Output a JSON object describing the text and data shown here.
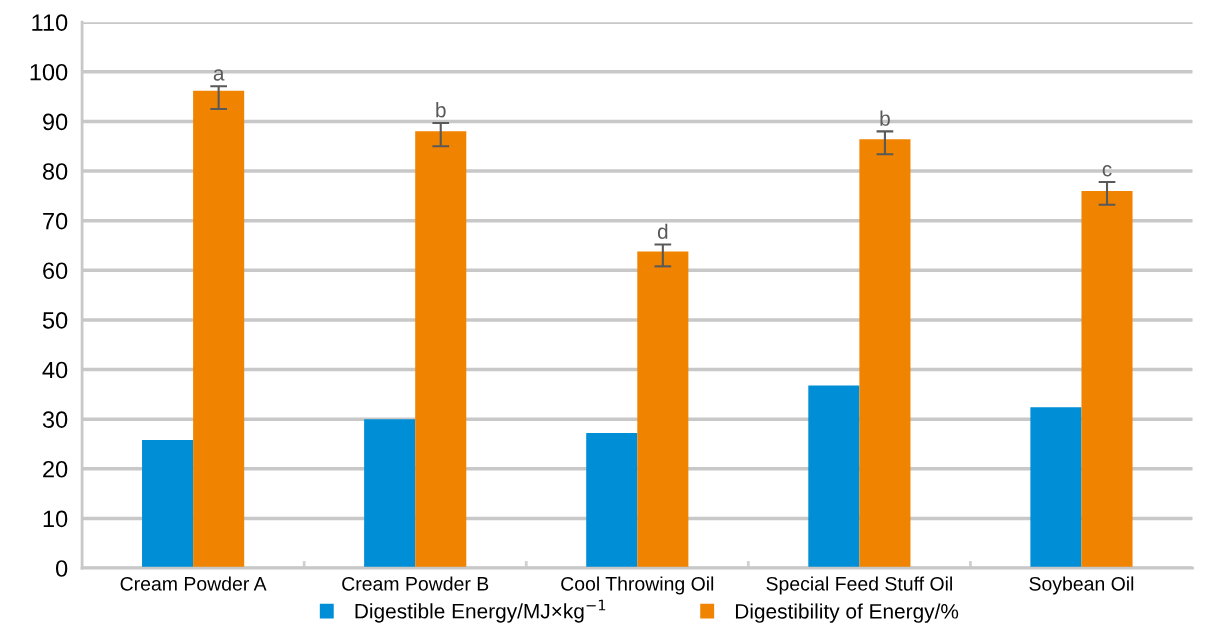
{
  "chart_data": {
    "type": "bar",
    "categories": [
      "Cream Powder A",
      "Cream Powder B",
      "Cool Throwing Oil",
      "Special Feed Stuff Oil",
      "Soybean Oil"
    ],
    "series": [
      {
        "name": "Digestible Energy/MJ×kg$^{−1}$",
        "color": "#008ed6",
        "values": [
          25.8,
          30.0,
          27.2,
          36.8,
          32.4
        ]
      },
      {
        "name": "Digestibility of Energy/%",
        "color": "#f08300",
        "values": [
          96.2,
          88.0,
          63.8,
          86.4,
          76.0
        ],
        "errors": [
          [
            92.5,
            97.1
          ],
          [
            85.0,
            89.7
          ],
          [
            60.8,
            65.2
          ],
          [
            83.4,
            88.0
          ],
          [
            73.2,
            77.8
          ]
        ]
      }
    ],
    "annotations": [
      "a",
      "b",
      "d",
      "b",
      "c"
    ],
    "ylim": [
      0,
      110
    ],
    "yticks": [
      0,
      10,
      20,
      30,
      40,
      50,
      60,
      70,
      80,
      90,
      100,
      110
    ],
    "grid": "y",
    "legend": "bottom"
  }
}
